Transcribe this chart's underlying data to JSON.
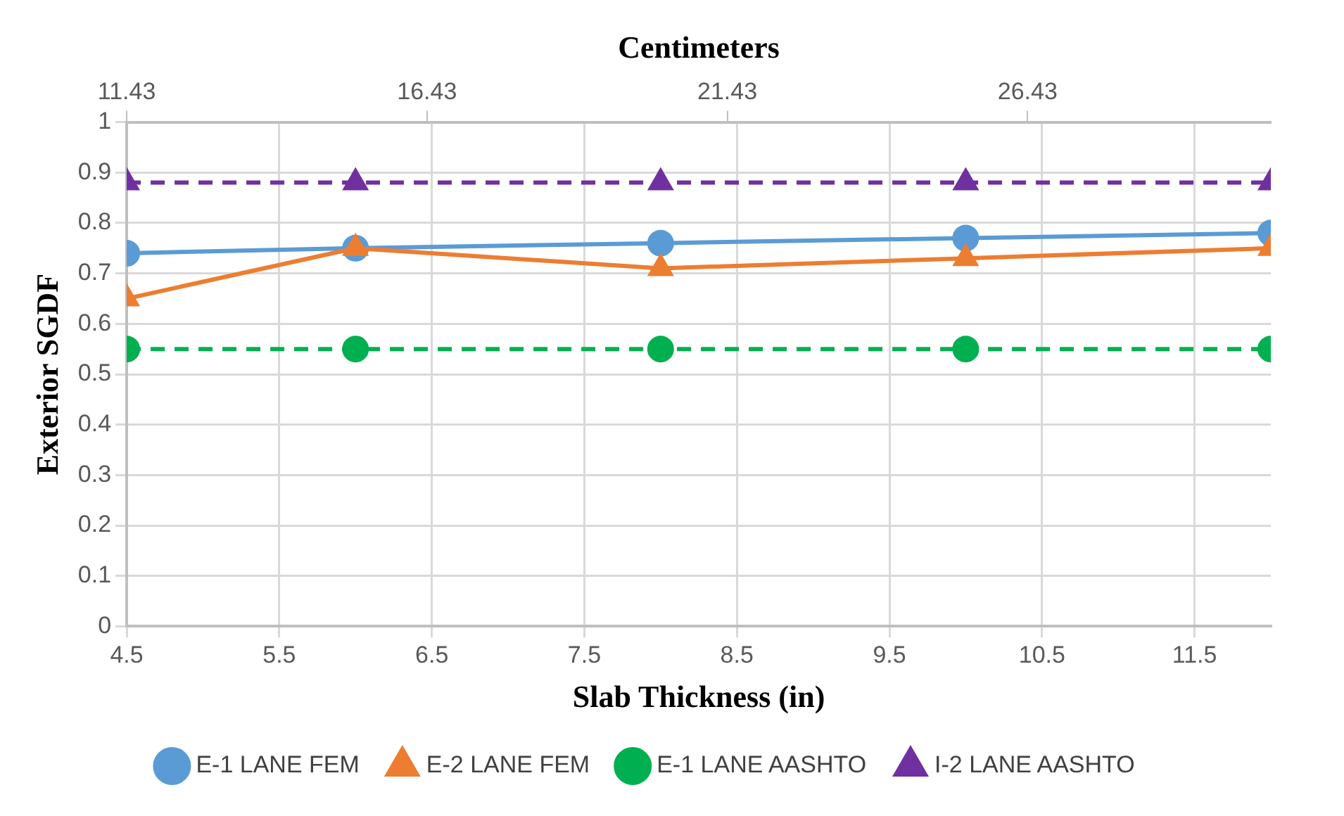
{
  "chart_data": {
    "type": "line",
    "xlabel": "Slab Thickness (in)",
    "ylabel": "Exterior SGDF",
    "x2label": "Centimeters",
    "x": [
      4.5,
      6,
      8,
      10,
      12
    ],
    "xlim": [
      4.5,
      12
    ],
    "xticks": [
      4.5,
      5.5,
      6.5,
      7.5,
      8.5,
      9.5,
      10.5,
      11.5
    ],
    "x2lim": [
      11.43,
      30.48
    ],
    "x2ticks": [
      11.43,
      16.43,
      21.43,
      26.43
    ],
    "ylim": [
      0,
      1
    ],
    "yticks": [
      0,
      0.1,
      0.2,
      0.3,
      0.4,
      0.5,
      0.6,
      0.7,
      0.8,
      0.9,
      1
    ],
    "grid": true,
    "legend": "bottom",
    "series": [
      {
        "name": "E-1 LANE FEM",
        "color": "#5b9bd5",
        "marker": "circle",
        "line_style": "solid",
        "values": [
          0.74,
          0.75,
          0.76,
          0.77,
          0.78
        ]
      },
      {
        "name": "E-2 LANE FEM",
        "color": "#ed7d31",
        "marker": "triangle",
        "line_style": "solid",
        "values": [
          0.65,
          0.75,
          0.71,
          0.73,
          0.75
        ]
      },
      {
        "name": "E-1 LANE AASHTO",
        "color": "#00b050",
        "marker": "circle",
        "line_style": "dashed",
        "values": [
          0.55,
          0.55,
          0.55,
          0.55,
          0.55
        ]
      },
      {
        "name": "I-2 LANE AASHTO",
        "color": "#7030a0",
        "marker": "triangle",
        "line_style": "dashed",
        "values": [
          0.88,
          0.88,
          0.88,
          0.88,
          0.88
        ]
      }
    ]
  }
}
